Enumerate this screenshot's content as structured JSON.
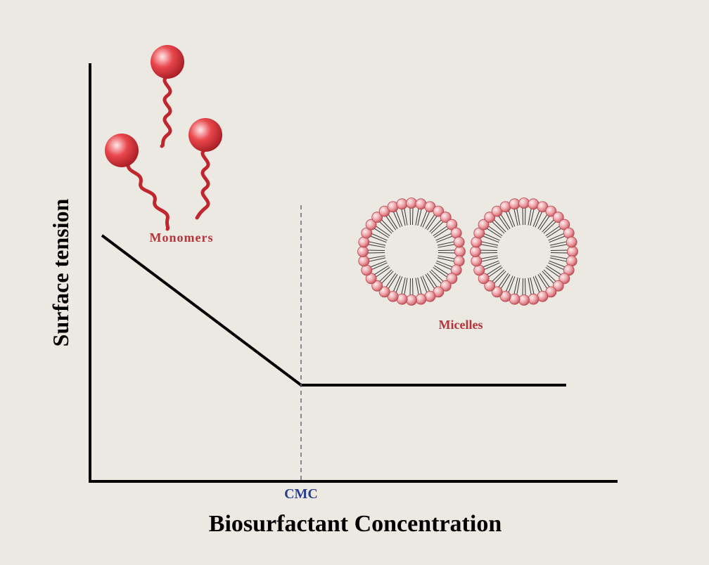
{
  "diagram": {
    "y_axis_label": "Surface tension",
    "x_axis_label": "Biosurfactant Concentration",
    "marker_label": "CMC",
    "monomers_label": "Monomers",
    "micelles_label": "Micelles"
  }
}
